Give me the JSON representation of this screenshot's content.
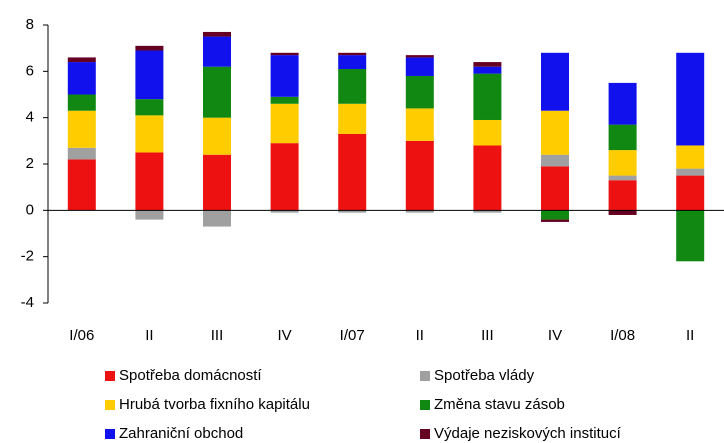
{
  "chart_data": {
    "type": "stacked_bar",
    "categories": [
      "I/06",
      "II",
      "III",
      "IV",
      "I/07",
      "II",
      "III",
      "IV",
      "I/08",
      "II"
    ],
    "series": [
      {
        "name": "Spotřeba domácností",
        "color": "#ee1111",
        "values": [
          2.2,
          2.5,
          2.4,
          2.9,
          3.3,
          3.0,
          2.8,
          1.9,
          1.3,
          1.5
        ]
      },
      {
        "name": "Spotřeba vlády",
        "color": "#a0a0a0",
        "values": [
          0.5,
          -0.4,
          -0.7,
          -0.1,
          -0.1,
          -0.1,
          -0.1,
          0.5,
          0.2,
          0.3
        ]
      },
      {
        "name": "Hrubá tvorba fixního kapitálu",
        "color": "#ffcc00",
        "values": [
          1.6,
          1.6,
          1.6,
          1.7,
          1.3,
          1.4,
          1.1,
          1.9,
          1.1,
          1.0
        ]
      },
      {
        "name": "Změna stavu zásob",
        "color": "#118811",
        "values": [
          0.7,
          0.7,
          2.2,
          0.3,
          1.5,
          1.4,
          2.0,
          -0.4,
          1.1,
          -2.2
        ]
      },
      {
        "name": "Zahraniční obchod",
        "color": "#1111ee",
        "values": [
          1.4,
          2.1,
          1.3,
          1.8,
          0.6,
          0.8,
          0.3,
          2.5,
          1.8,
          4.0
        ]
      },
      {
        "name": "Výdaje neziskových institucí",
        "color": "#660022",
        "values": [
          0.2,
          0.2,
          0.2,
          0.1,
          0.1,
          0.1,
          0.2,
          -0.1,
          -0.2,
          0.0
        ]
      }
    ],
    "ylim": [
      -4,
      8
    ],
    "yticks": [
      -4,
      -2,
      0,
      2,
      4,
      6,
      8
    ]
  }
}
